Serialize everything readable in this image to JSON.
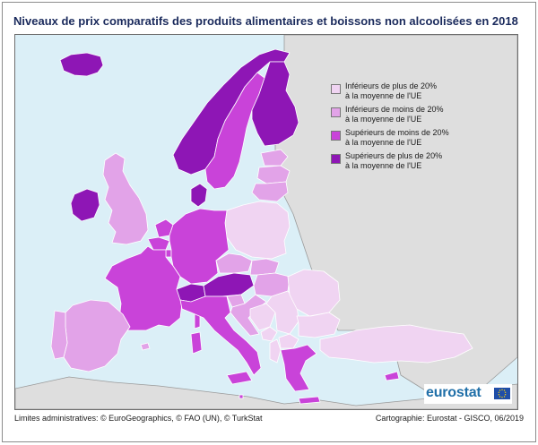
{
  "title": "Niveaux de prix comparatifs des produits alimentaires et boissons non alcoolisées en 2018",
  "legend": {
    "items": [
      {
        "line1": "Inférieurs de plus de 20%",
        "line2": "à la moyenne de l'UE",
        "color": "#f0d4f2",
        "class": "low_more_20"
      },
      {
        "line1": "Inférieurs de moins de 20%",
        "line2": "à la moyenne de l'UE",
        "color": "#e2a3e8",
        "class": "low_less_20"
      },
      {
        "line1": "Supérieurs de moins de 20%",
        "line2": "à la moyenne de l'UE",
        "color": "#c943d9",
        "class": "high_less_20"
      },
      {
        "line1": "Supérieurs de plus de 20%",
        "line2": "à la moyenne de l'UE",
        "color": "#8e16b5",
        "class": "high_more_20"
      }
    ]
  },
  "colors": {
    "sea": "#dbeff7",
    "non_eu_land": "#dedede",
    "no_data": "#dedede"
  },
  "countries": {
    "IS": "high_more_20",
    "IE": "high_more_20",
    "UK": "low_less_20",
    "NO": "high_more_20",
    "SE": "high_less_20",
    "FI": "high_more_20",
    "DK": "high_more_20",
    "EE": "low_less_20",
    "LV": "low_less_20",
    "LT": "low_less_20",
    "PL": "low_more_20",
    "DE": "high_less_20",
    "NL": "high_less_20",
    "BE": "high_less_20",
    "LU": "high_less_20",
    "FR": "high_less_20",
    "CH": "high_more_20",
    "AT": "high_more_20",
    "IT": "high_less_20",
    "ES": "low_less_20",
    "PT": "low_less_20",
    "CZ": "low_less_20",
    "SK": "low_less_20",
    "HU": "low_less_20",
    "SI": "low_less_20",
    "HR": "low_less_20",
    "RO": "low_more_20",
    "BG": "low_more_20",
    "RS": "low_more_20",
    "BA": "low_more_20",
    "ME": "low_more_20",
    "MK": "low_more_20",
    "AL": "low_more_20",
    "EL": "high_less_20",
    "MT": "high_less_20",
    "CY": "high_less_20",
    "TR": "low_more_20"
  },
  "logo": {
    "text": "eurostat"
  },
  "footer": {
    "left": "Limites administratives: © EuroGeographics, © FAO (UN), © TurkStat",
    "right": "Cartographie: Eurostat - GISCO, 06/2019"
  }
}
